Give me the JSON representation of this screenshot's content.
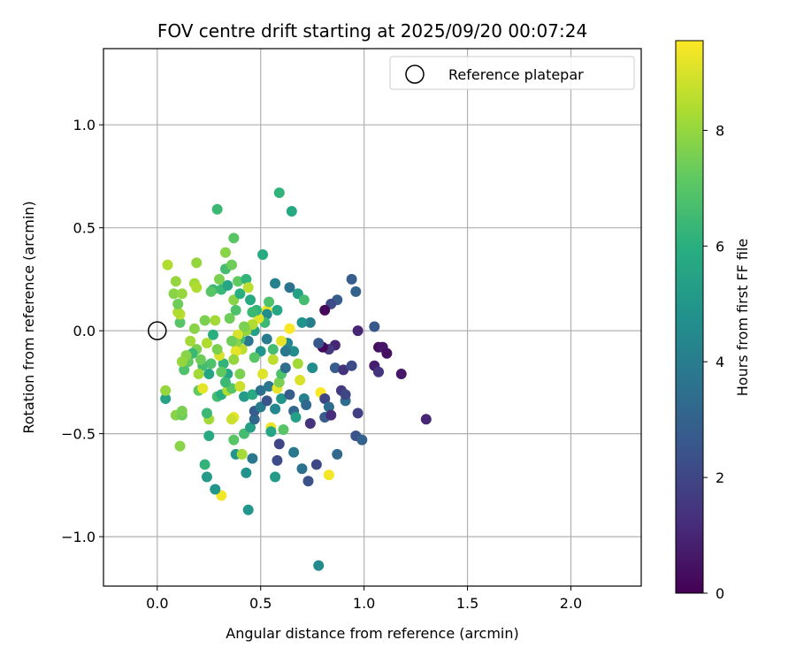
{
  "chart_data": {
    "type": "scatter",
    "title": "FOV centre drift starting at 2025/09/20 00:07:24",
    "xlabel": "Angular distance from reference (arcmin)",
    "ylabel": "Rotation from reference (arcmin)",
    "xlim": [
      -0.26,
      2.34
    ],
    "ylim": [
      -1.24,
      1.37
    ],
    "xticks": [
      0.0,
      0.5,
      1.0,
      1.5,
      2.0
    ],
    "xtick_labels": [
      "0.0",
      "0.5",
      "1.0",
      "1.5",
      "2.0"
    ],
    "yticks": [
      -1.0,
      -0.5,
      0.0,
      0.5,
      1.0
    ],
    "ytick_labels": [
      "−1.0",
      "−0.5",
      "0.0",
      "0.5",
      "1.0"
    ],
    "grid": true,
    "legend": {
      "position": "top-right",
      "label": "Reference platepar"
    },
    "reference_point": {
      "x": 0.0,
      "y": 0.0
    },
    "colorbar": {
      "label": "Hours from first FF file",
      "min": 0,
      "max": 9.55,
      "ticks": [
        0,
        2,
        4,
        6,
        8
      ],
      "tick_labels": [
        "0",
        "2",
        "4",
        "6",
        "8"
      ],
      "colormap": "viridis"
    },
    "points": [
      [
        0.78,
        -1.14,
        4.5
      ],
      [
        0.44,
        -0.87,
        5.0
      ],
      [
        0.31,
        -0.8,
        9.4
      ],
      [
        0.28,
        -0.77,
        5.0
      ],
      [
        0.24,
        -0.71,
        5.2
      ],
      [
        0.23,
        -0.65,
        6.2
      ],
      [
        0.11,
        -0.56,
        7.8
      ],
      [
        0.25,
        -0.51,
        5.8
      ],
      [
        0.09,
        -0.41,
        7.8
      ],
      [
        0.12,
        -0.41,
        7.4
      ],
      [
        0.12,
        -0.39,
        7.6
      ],
      [
        0.04,
        -0.33,
        5.5
      ],
      [
        0.04,
        -0.29,
        8.0
      ],
      [
        0.2,
        -0.29,
        7.2
      ],
      [
        0.22,
        -0.28,
        9.2
      ],
      [
        0.25,
        -0.43,
        8.2
      ],
      [
        0.24,
        -0.4,
        6.4
      ],
      [
        0.29,
        -0.32,
        6.6
      ],
      [
        0.31,
        -0.31,
        6.0
      ],
      [
        0.34,
        -0.29,
        8.4
      ],
      [
        0.36,
        -0.28,
        7.0
      ],
      [
        0.4,
        -0.27,
        8.8
      ],
      [
        0.4,
        -0.21,
        7.6
      ],
      [
        0.42,
        -0.32,
        5.2
      ],
      [
        0.37,
        -0.42,
        9.2
      ],
      [
        0.37,
        -0.53,
        7.0
      ],
      [
        0.38,
        -0.6,
        5.0
      ],
      [
        0.41,
        -0.6,
        8.2
      ],
      [
        0.43,
        -0.69,
        4.8
      ],
      [
        0.46,
        -0.62,
        3.8
      ],
      [
        0.42,
        -0.5,
        6.6
      ],
      [
        0.45,
        -0.47,
        5.4
      ],
      [
        0.47,
        -0.43,
        3.2
      ],
      [
        0.47,
        -0.39,
        2.8
      ],
      [
        0.46,
        -0.31,
        5.8
      ],
      [
        0.5,
        -0.37,
        4.0
      ],
      [
        0.5,
        -0.29,
        3.6
      ],
      [
        0.51,
        -0.21,
        9.1
      ],
      [
        0.53,
        -0.34,
        2.5
      ],
      [
        0.54,
        -0.27,
        3.8
      ],
      [
        0.55,
        -0.47,
        9.3
      ],
      [
        0.55,
        -0.49,
        5.6
      ],
      [
        0.57,
        -0.38,
        4.4
      ],
      [
        0.57,
        -0.71,
        5.2
      ],
      [
        0.59,
        -0.55,
        2.0
      ],
      [
        0.58,
        -0.63,
        2.2
      ],
      [
        0.58,
        -0.28,
        9.2
      ],
      [
        0.59,
        -0.25,
        7.6
      ],
      [
        0.6,
        -0.33,
        5.0
      ],
      [
        0.6,
        -0.21,
        6.8
      ],
      [
        0.61,
        -0.48,
        7.0
      ],
      [
        0.62,
        -0.18,
        3.4
      ],
      [
        0.64,
        -0.31,
        2.8
      ],
      [
        0.66,
        -0.39,
        3.2
      ],
      [
        0.67,
        -0.42,
        5.4
      ],
      [
        0.66,
        -0.59,
        3.8
      ],
      [
        0.7,
        -0.67,
        3.6
      ],
      [
        0.73,
        -0.73,
        2.4
      ],
      [
        0.69,
        -0.24,
        9.0
      ],
      [
        0.71,
        -0.33,
        4.2
      ],
      [
        0.72,
        -0.36,
        3.2
      ],
      [
        0.74,
        -0.45,
        1.4
      ],
      [
        0.75,
        -0.18,
        4.6
      ],
      [
        0.77,
        -0.65,
        2.0
      ],
      [
        0.79,
        -0.3,
        9.5
      ],
      [
        0.81,
        -0.42,
        2.8
      ],
      [
        0.81,
        -0.33,
        2.0
      ],
      [
        0.83,
        -0.37,
        3.4
      ],
      [
        0.84,
        -0.41,
        1.2
      ],
      [
        0.83,
        -0.7,
        9.4
      ],
      [
        0.87,
        -0.6,
        3.2
      ],
      [
        0.86,
        -0.18,
        2.8
      ],
      [
        0.89,
        -0.29,
        1.6
      ],
      [
        0.9,
        -0.19,
        1.4
      ],
      [
        0.91,
        -0.34,
        3.4
      ],
      [
        0.91,
        -0.31,
        2.0
      ],
      [
        0.94,
        -0.17,
        2.2
      ],
      [
        0.96,
        -0.51,
        2.4
      ],
      [
        0.97,
        -0.4,
        1.8
      ],
      [
        0.99,
        -0.53,
        3.0
      ],
      [
        0.97,
        0.0,
        1.0
      ],
      [
        1.05,
        0.02,
        2.6
      ],
      [
        1.05,
        -0.17,
        0.8
      ],
      [
        1.07,
        -0.2,
        1.4
      ],
      [
        1.07,
        -0.08,
        0.4
      ],
      [
        1.09,
        -0.08,
        0.6
      ],
      [
        1.11,
        -0.11,
        0.4
      ],
      [
        1.18,
        -0.21,
        0.6
      ],
      [
        1.3,
        -0.43,
        1.0
      ],
      [
        0.94,
        0.25,
        2.8
      ],
      [
        0.96,
        0.19,
        3.0
      ],
      [
        0.87,
        0.15,
        2.8
      ],
      [
        0.84,
        0.13,
        2.2
      ],
      [
        0.81,
        0.1,
        0.2
      ],
      [
        0.86,
        -0.07,
        1.0
      ],
      [
        0.83,
        -0.09,
        1.6
      ],
      [
        0.8,
        -0.08,
        0.2
      ],
      [
        0.78,
        -0.06,
        2.6
      ],
      [
        0.74,
        0.04,
        4.0
      ],
      [
        0.7,
        0.04,
        4.8
      ],
      [
        0.68,
        -0.16,
        8.2
      ],
      [
        0.68,
        0.18,
        5.4
      ],
      [
        0.64,
        0.21,
        3.6
      ],
      [
        0.64,
        0.01,
        9.5
      ],
      [
        0.63,
        -0.06,
        4.4
      ],
      [
        0.6,
        -0.05,
        9.2
      ],
      [
        0.57,
        0.23,
        4.2
      ],
      [
        0.58,
        0.1,
        5.6
      ],
      [
        0.56,
        -0.09,
        6.6
      ],
      [
        0.56,
        -0.14,
        8.6
      ],
      [
        0.53,
        0.1,
        9.3
      ],
      [
        0.53,
        0.08,
        4.6
      ],
      [
        0.53,
        -0.04,
        4.0
      ],
      [
        0.52,
        0.04,
        6.4
      ],
      [
        0.5,
        -0.1,
        5.0
      ],
      [
        0.49,
        0.06,
        9.1
      ],
      [
        0.48,
        0.1,
        6.2
      ],
      [
        0.47,
        0.0,
        5.4
      ],
      [
        0.47,
        -0.13,
        7.0
      ],
      [
        0.46,
        0.03,
        8.4
      ],
      [
        0.44,
        -0.05,
        3.8
      ],
      [
        0.43,
        0.0,
        8.0
      ],
      [
        0.42,
        0.02,
        7.6
      ],
      [
        0.41,
        -0.09,
        8.6
      ],
      [
        0.4,
        -0.04,
        6.6
      ],
      [
        0.39,
        -0.02,
        9.0
      ],
      [
        0.38,
        -0.06,
        7.8
      ],
      [
        0.38,
        -0.1,
        9.2
      ],
      [
        0.37,
        -0.14,
        8.0
      ],
      [
        0.36,
        -0.05,
        7.4
      ],
      [
        0.35,
        0.06,
        7.4
      ],
      [
        0.34,
        -0.21,
        5.6
      ],
      [
        0.33,
        -0.25,
        6.4
      ],
      [
        0.32,
        -0.16,
        6.2
      ],
      [
        0.31,
        -0.2,
        7.2
      ],
      [
        0.3,
        -0.12,
        9.0
      ],
      [
        0.29,
        -0.09,
        7.6
      ],
      [
        0.28,
        0.05,
        8.2
      ],
      [
        0.27,
        -0.02,
        6.0
      ],
      [
        0.26,
        -0.16,
        6.8
      ],
      [
        0.25,
        -0.21,
        5.6
      ],
      [
        0.24,
        -0.06,
        8.4
      ],
      [
        0.23,
        0.05,
        7.6
      ],
      [
        0.22,
        -0.17,
        6.6
      ],
      [
        0.21,
        -0.14,
        7.4
      ],
      [
        0.2,
        -0.21,
        8.2
      ],
      [
        0.19,
        -0.09,
        7.6
      ],
      [
        0.18,
        0.01,
        7.8
      ],
      [
        0.17,
        -0.11,
        6.4
      ],
      [
        0.16,
        -0.05,
        8.2
      ],
      [
        0.15,
        -0.15,
        7.2
      ],
      [
        0.14,
        -0.12,
        7.8
      ],
      [
        0.13,
        -0.19,
        6.8
      ],
      [
        0.12,
        -0.15,
        8.0
      ],
      [
        0.11,
        0.04,
        7.0
      ],
      [
        0.11,
        0.08,
        8.6
      ],
      [
        0.1,
        0.09,
        8.4
      ],
      [
        0.09,
        0.24,
        8.0
      ],
      [
        0.08,
        0.18,
        7.8
      ],
      [
        0.05,
        0.32,
        8.4
      ],
      [
        0.1,
        0.13,
        7.4
      ],
      [
        0.12,
        0.18,
        8.0
      ],
      [
        0.18,
        0.23,
        8.2
      ],
      [
        0.19,
        0.21,
        8.4
      ],
      [
        0.19,
        0.33,
        8.0
      ],
      [
        0.27,
        0.2,
        6.4
      ],
      [
        0.26,
        0.19,
        7.0
      ],
      [
        0.3,
        0.25,
        7.6
      ],
      [
        0.31,
        0.2,
        6.4
      ],
      [
        0.33,
        0.3,
        6.6
      ],
      [
        0.34,
        0.22,
        5.6
      ],
      [
        0.36,
        0.32,
        7.4
      ],
      [
        0.37,
        0.15,
        7.8
      ],
      [
        0.38,
        0.1,
        6.8
      ],
      [
        0.39,
        0.24,
        7.2
      ],
      [
        0.4,
        0.18,
        6.0
      ],
      [
        0.43,
        0.25,
        6.2
      ],
      [
        0.44,
        0.21,
        8.6
      ],
      [
        0.45,
        0.15,
        5.8
      ],
      [
        0.46,
        0.09,
        6.4
      ],
      [
        0.51,
        0.37,
        5.8
      ],
      [
        0.54,
        0.14,
        6.8
      ],
      [
        0.29,
        0.59,
        6.4
      ],
      [
        0.37,
        0.45,
        7.0
      ],
      [
        0.33,
        0.38,
        7.8
      ],
      [
        0.59,
        0.67,
        6.2
      ],
      [
        0.65,
        0.58,
        5.8
      ],
      [
        0.71,
        0.15,
        6.6
      ],
      [
        0.66,
        -0.1,
        4.6
      ],
      [
        0.62,
        -0.1,
        3.8
      ],
      [
        0.36,
        -0.43,
        8.8
      ]
    ]
  }
}
